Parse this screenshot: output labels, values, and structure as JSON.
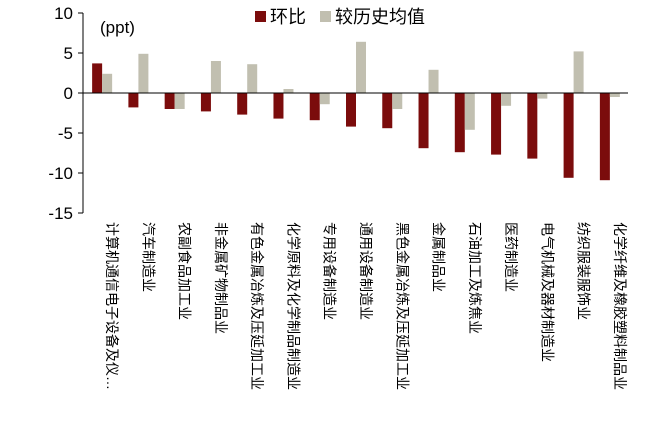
{
  "chart_data": {
    "type": "bar",
    "unit_label": "(ppt)",
    "ylim": [
      -15,
      10
    ],
    "yticks": [
      10,
      5,
      0,
      -5,
      -10,
      -15
    ],
    "grid": false,
    "legend_position": "top",
    "categories": [
      "计算机通信电子设备及仪…",
      "汽车制造业",
      "农副食品加工业",
      "非金属矿物制品业",
      "有色金属冶炼及压延加工业",
      "化学原料及化学制品制造业",
      "专用设备制造业",
      "通用设备制造业",
      "黑色金属冶炼及压延加工业",
      "金属制品业",
      "石油加工及炼焦业",
      "医药制造业",
      "电气机械及器材制造业",
      "纺织服装服饰业",
      "化学纤维及橡胶塑料制品业"
    ],
    "series": [
      {
        "name": "环比",
        "color": "#7b0c0c",
        "values": [
          3.7,
          -1.8,
          -2.0,
          -2.3,
          -2.7,
          -3.2,
          -3.4,
          -4.2,
          -4.4,
          -6.9,
          -7.4,
          -7.7,
          -8.2,
          -10.6,
          -10.9
        ]
      },
      {
        "name": "较历史均值",
        "color": "#c1bfb0",
        "values": [
          2.4,
          4.9,
          -2.0,
          4.0,
          3.6,
          0.5,
          -1.4,
          6.4,
          -2.0,
          2.9,
          -4.6,
          -1.6,
          -0.7,
          5.2,
          -0.5
        ]
      }
    ]
  }
}
